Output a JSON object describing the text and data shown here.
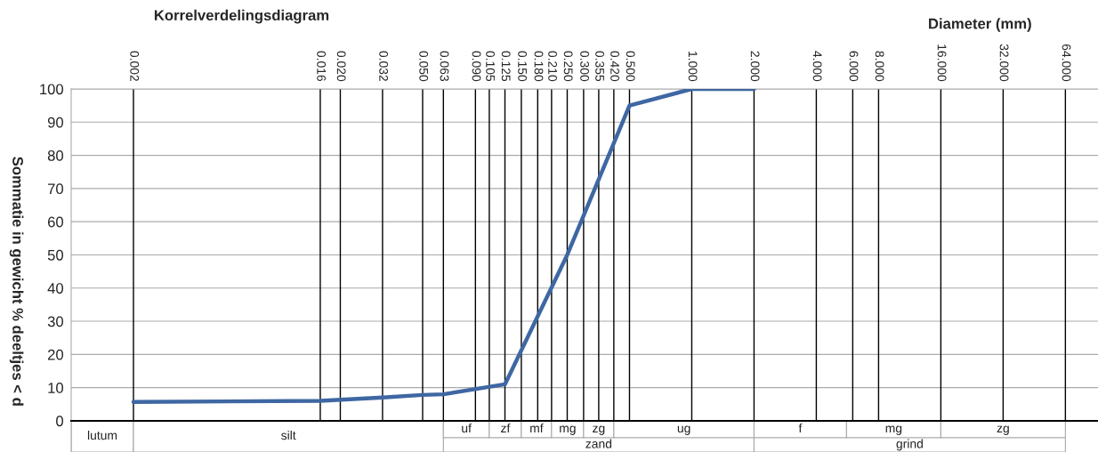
{
  "chart_data": {
    "type": "line",
    "title": "Korrelverdelingsdiagram",
    "xlabel": "Diameter (mm)",
    "ylabel": "Sommatie in gewicht % deeltjes < d",
    "log": "x",
    "grid": true,
    "marker": "none",
    "line_style": "solid",
    "xlim": [
      0.001,
      92
    ],
    "ylim": [
      -9.4,
      100
    ],
    "xticks": [
      {
        "value": 0.002,
        "label": "0.002"
      },
      {
        "value": 0.016,
        "label": "0.016"
      },
      {
        "value": 0.02,
        "label": "0.020"
      },
      {
        "value": 0.032,
        "label": "0.032"
      },
      {
        "value": 0.05,
        "label": "0.050"
      },
      {
        "value": 0.063,
        "label": "0.063"
      },
      {
        "value": 0.09,
        "label": "0.090"
      },
      {
        "value": 0.105,
        "label": "0.105"
      },
      {
        "value": 0.125,
        "label": "0.125"
      },
      {
        "value": 0.15,
        "label": "0.150"
      },
      {
        "value": 0.18,
        "label": "0.180"
      },
      {
        "value": 0.21,
        "label": "0.210"
      },
      {
        "value": 0.25,
        "label": "0.250"
      },
      {
        "value": 0.3,
        "label": "0.300"
      },
      {
        "value": 0.355,
        "label": "0.355"
      },
      {
        "value": 0.42,
        "label": "0.420"
      },
      {
        "value": 0.5,
        "label": "0.500"
      },
      {
        "value": 1,
        "label": "1.000"
      },
      {
        "value": 2,
        "label": "2.000"
      },
      {
        "value": 4,
        "label": "4.000"
      },
      {
        "value": 6,
        "label": "6.000"
      },
      {
        "value": 8,
        "label": "8.000"
      },
      {
        "value": 16,
        "label": "16.000"
      },
      {
        "value": 32,
        "label": "32.000"
      },
      {
        "value": 64,
        "label": "64.000"
      }
    ],
    "yticks": [
      0,
      10,
      20,
      30,
      40,
      50,
      60,
      70,
      80,
      90,
      100
    ],
    "series": [
      {
        "color": "#3e67a3",
        "x": [
          0.002,
          0.016,
          0.032,
          0.05,
          0.063,
          0.125,
          0.25,
          0.5,
          1,
          2
        ],
        "values": [
          5.7,
          6,
          7,
          7.8,
          8,
          11,
          50,
          95,
          100,
          100
        ]
      }
    ],
    "bands": [
      {
        "axis": "x",
        "from": 0.001,
        "to": 0.002,
        "label": "lutum"
      },
      {
        "axis": "x",
        "from": 0.002,
        "to": 0.063,
        "label": "silt"
      },
      {
        "axis": "x",
        "from": 0.063,
        "to": 2,
        "label": "zand"
      },
      {
        "axis": "x",
        "from": 0.063,
        "to": 0.105,
        "label": "uf"
      },
      {
        "axis": "x",
        "from": 0.105,
        "to": 0.15,
        "label": "zf"
      },
      {
        "axis": "x",
        "from": 0.15,
        "to": 0.21,
        "label": "mf"
      },
      {
        "axis": "x",
        "from": 0.21,
        "to": 0.3,
        "label": "mg"
      },
      {
        "axis": "x",
        "from": 0.3,
        "to": 0.42,
        "label": "zg"
      },
      {
        "axis": "x",
        "from": 0.42,
        "to": 2,
        "label": "ug"
      },
      {
        "axis": "x",
        "from": 2,
        "to": 64,
        "label": "grind"
      },
      {
        "axis": "x",
        "from": 2,
        "to": 5.6,
        "label": "f"
      },
      {
        "axis": "x",
        "from": 5.6,
        "to": 16,
        "label": "mg"
      },
      {
        "axis": "x",
        "from": 16,
        "to": 64,
        "label": "zg"
      }
    ]
  }
}
